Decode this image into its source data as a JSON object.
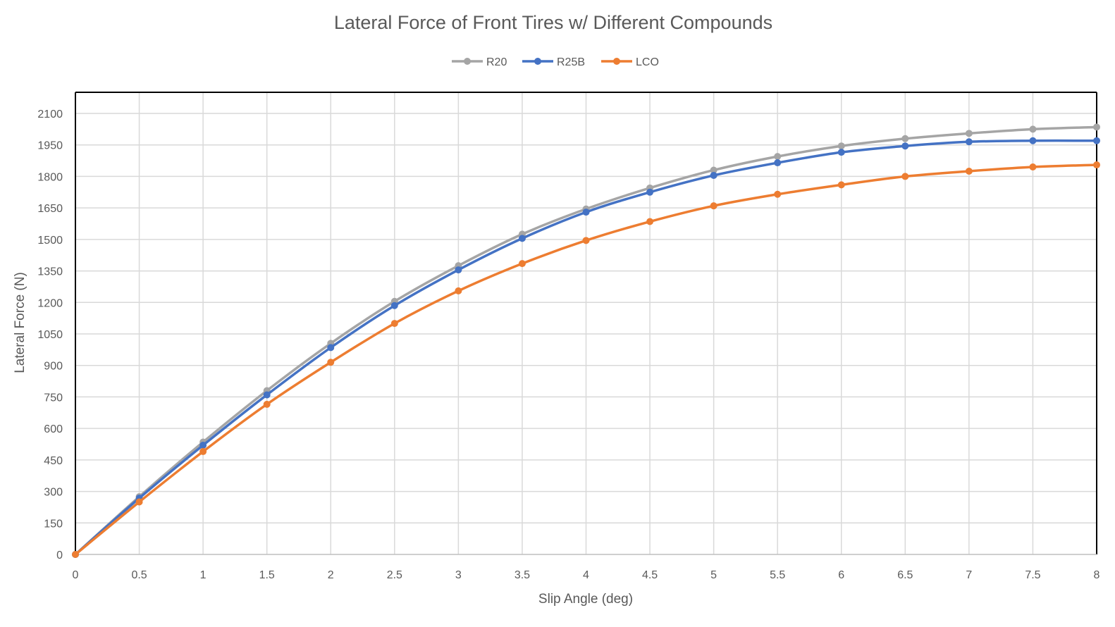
{
  "chart_data": {
    "type": "line",
    "title": "Lateral Force of Front Tires w/ Different Compounds",
    "xlabel": "Slip Angle (deg)",
    "ylabel": "Lateral Force (N)",
    "xlim": [
      0,
      8
    ],
    "ylim": [
      0,
      2200
    ],
    "x_ticks": [
      "0",
      "0.5",
      "1",
      "1.5",
      "2",
      "2.5",
      "3",
      "3.5",
      "4",
      "4.5",
      "5",
      "5.5",
      "6",
      "6.5",
      "7",
      "7.5",
      "8"
    ],
    "y_ticks": [
      "0",
      "150",
      "300",
      "450",
      "600",
      "750",
      "900",
      "1050",
      "1200",
      "1350",
      "1500",
      "1650",
      "1800",
      "1950",
      "2100"
    ],
    "grid": true,
    "legend_position": "top",
    "x": [
      0,
      0.5,
      1,
      1.5,
      2,
      2.5,
      3,
      3.5,
      4,
      4.5,
      5,
      5.5,
      6,
      6.5,
      7,
      7.5,
      8
    ],
    "series": [
      {
        "name": "R20",
        "color": "#a5a5a5",
        "values": [
          0,
          275,
          535,
          780,
          1005,
          1205,
          1375,
          1525,
          1645,
          1745,
          1830,
          1895,
          1945,
          1980,
          2005,
          2025,
          2035
        ]
      },
      {
        "name": "R25B",
        "color": "#4472c4",
        "values": [
          0,
          268,
          520,
          760,
          985,
          1185,
          1355,
          1505,
          1630,
          1725,
          1805,
          1865,
          1915,
          1945,
          1965,
          1970,
          1970
        ]
      },
      {
        "name": "LCO",
        "color": "#ed7d31",
        "values": [
          0,
          250,
          490,
          715,
          915,
          1100,
          1255,
          1385,
          1495,
          1585,
          1660,
          1715,
          1760,
          1800,
          1825,
          1845,
          1855
        ]
      }
    ]
  }
}
